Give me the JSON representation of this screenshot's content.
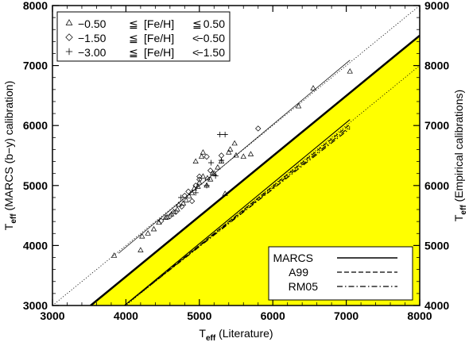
{
  "chart_data": {
    "type": "scatter",
    "x_axis": {
      "label_main": "T",
      "label_sub": "eff",
      "label_rest": "  (Literature)",
      "range": [
        3000,
        8000
      ],
      "ticks": [
        "3000",
        "4000",
        "5000",
        "6000",
        "7000",
        "8000"
      ]
    },
    "y_axis_left": {
      "label_main": "T",
      "label_sub": "eff",
      "label_rest": "  (MARCS (b−y) calibration)",
      "range": [
        3000,
        8000
      ],
      "ticks": [
        "3000",
        "4000",
        "5000",
        "6000",
        "7000",
        "8000"
      ]
    },
    "y_axis_right": {
      "label_main": "T",
      "label_sub": "eff",
      "label_rest": "  (Empirical calibrations)",
      "range": [
        4000,
        9000
      ],
      "ticks": [
        "4000",
        "5000",
        "6000",
        "7000",
        "8000",
        "9000"
      ]
    },
    "legend_top": [
      {
        "symbol": "triangle",
        "lo": "−0.50",
        "op1": "≦",
        "mid": "[Fe/H]",
        "op2": "≦",
        "hi": "0.50"
      },
      {
        "symbol": "diamond",
        "lo": "−1.50",
        "op1": "≦",
        "mid": "[Fe/H]",
        "op2": "<",
        "hi": "−0.50"
      },
      {
        "symbol": "plus",
        "lo": "−3.00",
        "op1": "≦",
        "mid": "[Fe/H]",
        "op2": "<",
        "hi": "−1.50"
      }
    ],
    "legend_bottom": [
      {
        "label": "MARCS",
        "style": "solid"
      },
      {
        "label": "A99",
        "style": "dashed"
      },
      {
        "label": "RM05",
        "style": "dashdot"
      }
    ],
    "one_to_one_upper_dotted": [
      [
        3000,
        3000
      ],
      [
        8000,
        8000
      ]
    ],
    "one_to_one_lower_dotted": [
      [
        3900,
        2900
      ],
      [
        8000,
        7000
      ]
    ],
    "fit_upper_thin": [
      [
        3900,
        3870
      ],
      [
        7050,
        7090
      ]
    ],
    "shaded_region_color": "#ffff00",
    "shaded_boundary": [
      [
        3520,
        3000
      ],
      [
        8000,
        7500
      ]
    ],
    "calibration_lines": {
      "MARCS": {
        "start": [
          3950,
          2970
        ],
        "end": [
          7050,
          6100
        ],
        "style": "solid"
      },
      "A99": {
        "start": [
          3950,
          2970
        ],
        "end": [
          7050,
          6020
        ],
        "style": "dashed"
      },
      "RM05": {
        "start": [
          3950,
          2970
        ],
        "end": [
          7050,
          5950
        ],
        "style": "dashdot"
      },
      "extra": {
        "start": [
          3950,
          2970
        ],
        "end": [
          7050,
          5980
        ],
        "style": "dashdotdot"
      }
    },
    "triangles": [
      [
        3840,
        3830
      ],
      [
        4200,
        3920
      ],
      [
        4220,
        4150
      ],
      [
        4300,
        4200
      ],
      [
        4380,
        4270
      ],
      [
        4450,
        4380
      ],
      [
        4540,
        4460
      ],
      [
        4560,
        4470
      ],
      [
        4620,
        4520
      ],
      [
        4650,
        4560
      ],
      [
        4700,
        4600
      ],
      [
        4720,
        4680
      ],
      [
        4780,
        4700
      ],
      [
        4820,
        4750
      ],
      [
        4860,
        4820
      ],
      [
        4900,
        4870
      ],
      [
        4930,
        4950
      ],
      [
        4980,
        4980
      ],
      [
        5000,
        5050
      ],
      [
        5050,
        5150
      ],
      [
        5100,
        5000
      ],
      [
        5150,
        5100
      ],
      [
        5180,
        5200
      ],
      [
        5200,
        5200
      ],
      [
        5250,
        5300
      ],
      [
        5300,
        5400
      ],
      [
        5350,
        4860
      ],
      [
        5400,
        5550
      ],
      [
        5420,
        5600
      ],
      [
        5480,
        5700
      ],
      [
        5500,
        5500
      ],
      [
        5600,
        5480
      ],
      [
        5700,
        5520
      ],
      [
        6350,
        6320
      ],
      [
        6550,
        6620
      ],
      [
        7050,
        6900
      ],
      [
        5030,
        5480
      ],
      [
        4950,
        5400
      ],
      [
        5110,
        5120
      ],
      [
        5050,
        5550
      ]
    ],
    "diamonds": [
      [
        4480,
        4410
      ],
      [
        4600,
        4490
      ],
      [
        4680,
        4560
      ],
      [
        4760,
        4650
      ],
      [
        4800,
        4830
      ],
      [
        4850,
        4900
      ],
      [
        4900,
        4740
      ],
      [
        4950,
        5000
      ],
      [
        5000,
        5150
      ],
      [
        5100,
        5480
      ],
      [
        5150,
        5250
      ],
      [
        5300,
        5500
      ],
      [
        5800,
        5950
      ],
      [
        5000,
        5100
      ]
    ],
    "pluses": [
      [
        5280,
        5850
      ],
      [
        5350,
        5850
      ],
      [
        5300,
        5420
      ],
      [
        5160,
        5380
      ],
      [
        4750,
        4800
      ],
      [
        4950,
        4880
      ],
      [
        5100,
        5000
      ],
      [
        5220,
        5160
      ]
    ]
  }
}
